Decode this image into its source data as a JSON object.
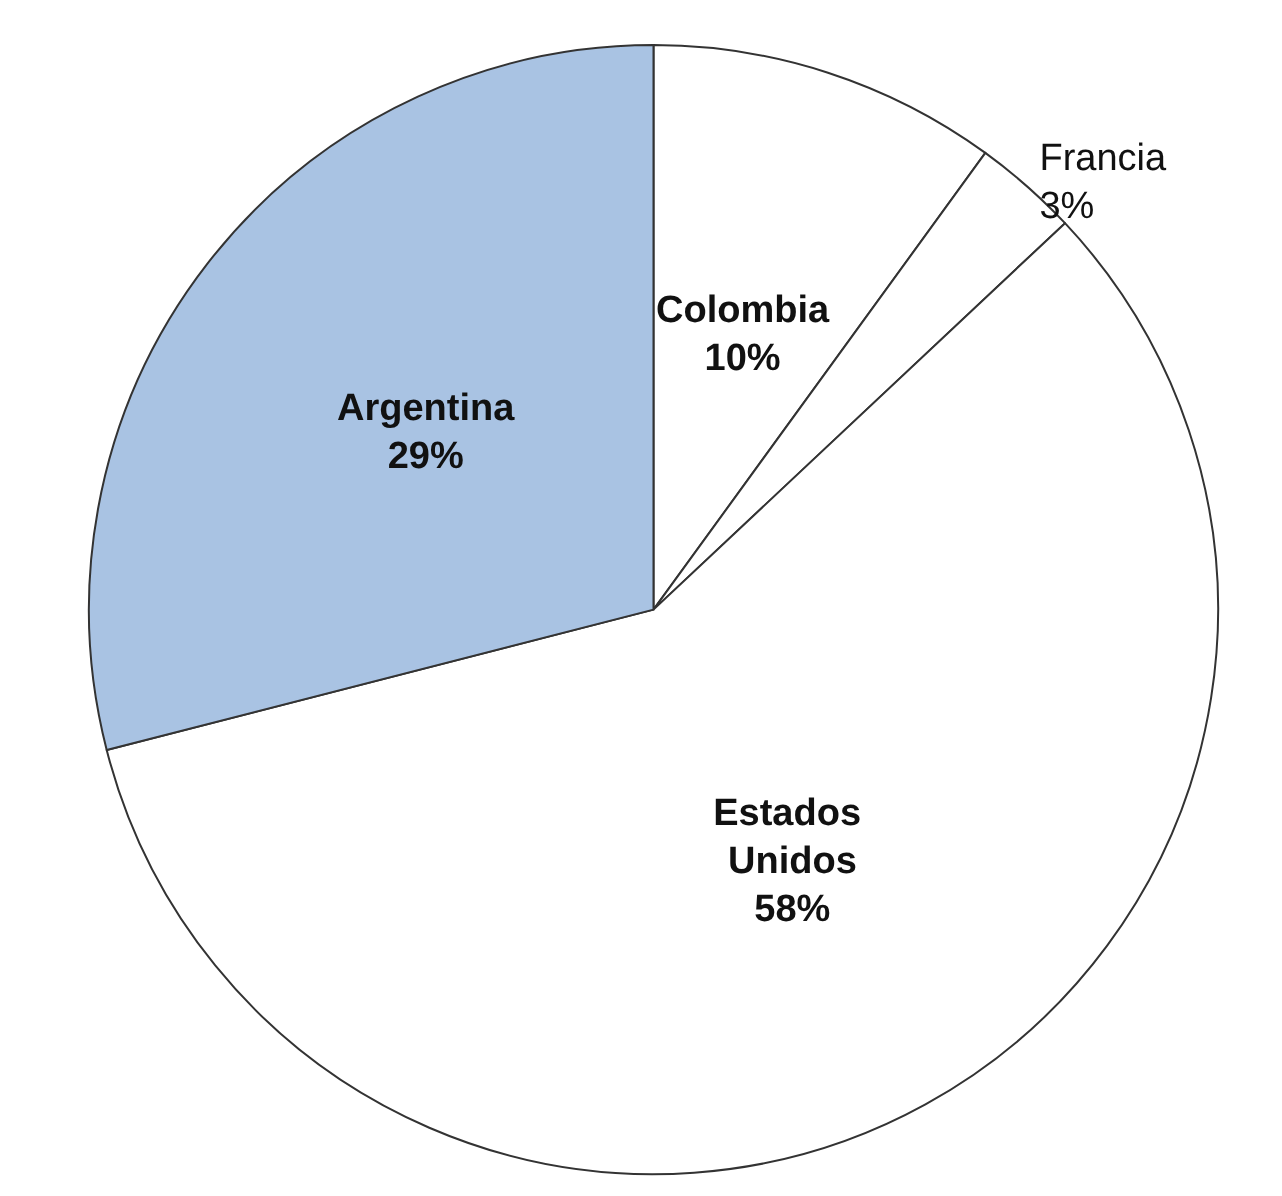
{
  "chart_data": {
    "type": "pie",
    "categories": [
      "Colombia",
      "Francia",
      "Estados Unidos",
      "Argentina"
    ],
    "values": [
      10,
      3,
      58,
      29
    ],
    "colors": [
      "#ffffff",
      "#ffffff",
      "#ffffff",
      "#a9c3e3"
    ],
    "value_labels": [
      "10%",
      "3%",
      "58%",
      "29%"
    ],
    "legend": false
  }
}
